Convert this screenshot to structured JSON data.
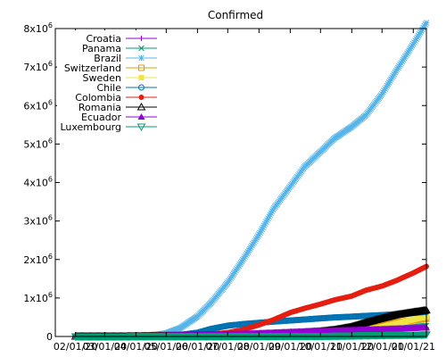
{
  "chart_data": {
    "type": "line",
    "title": "Confirmed",
    "xlabel": "",
    "ylabel": "",
    "x_ticks": [
      "02/01/20",
      "03/01/20",
      "04/01/20",
      "05/01/20",
      "06/01/20",
      "07/01/20",
      "08/01/20",
      "09/01/20",
      "10/01/20",
      "11/01/20",
      "12/01/20",
      "01/01/21"
    ],
    "y_ticks": [
      {
        "value": 0,
        "base": "0",
        "exp": ""
      },
      {
        "value": 1000000,
        "base": "1x10",
        "exp": "6"
      },
      {
        "value": 2000000,
        "base": "2x10",
        "exp": "6"
      },
      {
        "value": 3000000,
        "base": "3x10",
        "exp": "6"
      },
      {
        "value": 4000000,
        "base": "4x10",
        "exp": "6"
      },
      {
        "value": 5000000,
        "base": "5x10",
        "exp": "6"
      },
      {
        "value": 6000000,
        "base": "6x10",
        "exp": "6"
      },
      {
        "value": 7000000,
        "base": "7x10",
        "exp": "6"
      },
      {
        "value": 8000000,
        "base": "8x10",
        "exp": "6"
      }
    ],
    "xlim": [
      "2020-01-12",
      "2021-01-14"
    ],
    "ylim": [
      0,
      8000000
    ],
    "grid": false,
    "legend_position": "top-left",
    "dates": [
      "2020-02-01",
      "2020-03-01",
      "2020-03-15",
      "2020-04-01",
      "2020-04-15",
      "2020-05-01",
      "2020-05-15",
      "2020-06-01",
      "2020-06-15",
      "2020-07-01",
      "2020-07-15",
      "2020-08-01",
      "2020-08-15",
      "2020-09-01",
      "2020-09-15",
      "2020-10-01",
      "2020-10-15",
      "2020-11-01",
      "2020-11-15",
      "2020-12-01",
      "2020-12-15",
      "2021-01-01",
      "2021-01-14"
    ],
    "series": [
      {
        "name": "Croatia",
        "color": "#9400d3",
        "marker": "plus",
        "values": [
          0,
          0,
          0,
          1000,
          2000,
          2100,
          2200,
          2300,
          2500,
          3000,
          4000,
          5000,
          6500,
          10000,
          14000,
          17000,
          21000,
          50000,
          80000,
          130000,
          190000,
          210000,
          223000
        ]
      },
      {
        "name": "Panama",
        "color": "#009e73",
        "marker": "cross",
        "values": [
          0,
          0,
          100,
          1000,
          3000,
          6000,
          9000,
          14000,
          21000,
          33000,
          50000,
          65000,
          80000,
          95000,
          103000,
          115000,
          127000,
          140000,
          155000,
          170000,
          195000,
          245000,
          280000
        ]
      },
      {
        "name": "Brazil",
        "color": "#56b4e9",
        "marker": "asterisk",
        "values": [
          0,
          1,
          200,
          6000,
          28000,
          85000,
          220000,
          520000,
          890000,
          1400000,
          1950000,
          2650000,
          3300000,
          3900000,
          4400000,
          4800000,
          5150000,
          5450000,
          5750000,
          6300000,
          6900000,
          7600000,
          8150000
        ]
      },
      {
        "name": "Switzerland",
        "color": "#e69f00",
        "marker": "square",
        "values": [
          0,
          30,
          2200,
          17000,
          26000,
          29500,
          30500,
          30900,
          31300,
          32000,
          33500,
          35000,
          38000,
          42000,
          46000,
          53000,
          70000,
          160000,
          260000,
          320000,
          370000,
          420000,
          460000
        ]
      },
      {
        "name": "Sweden",
        "color": "#f0e442",
        "marker": "filled-square",
        "values": [
          0,
          10,
          1000,
          5000,
          12000,
          21000,
          30000,
          38000,
          52000,
          68000,
          75000,
          80000,
          83000,
          85000,
          88000,
          93000,
          105000,
          125000,
          180000,
          245000,
          330000,
          440000,
          520000
        ]
      },
      {
        "name": "Chile",
        "color": "#0072b2",
        "marker": "circle",
        "values": [
          0,
          0,
          60,
          3000,
          8000,
          16000,
          40000,
          100000,
          200000,
          280000,
          320000,
          355000,
          385000,
          415000,
          440000,
          470000,
          495000,
          515000,
          535000,
          555000,
          580000,
          610000,
          640000
        ]
      },
      {
        "name": "Colombia",
        "color": "#e51e10",
        "marker": "filled-circle",
        "values": [
          0,
          0,
          50,
          1000,
          3000,
          7000,
          15000,
          30000,
          60000,
          100000,
          170000,
          300000,
          430000,
          620000,
          730000,
          840000,
          950000,
          1050000,
          1200000,
          1310000,
          1450000,
          1650000,
          1820000
        ]
      },
      {
        "name": "Romania",
        "color": "#000000",
        "marker": "triangle",
        "values": [
          0,
          3,
          150,
          2500,
          7000,
          12500,
          16500,
          19500,
          23000,
          27500,
          35000,
          52000,
          70000,
          90000,
          106000,
          130000,
          170000,
          250000,
          360000,
          470000,
          560000,
          630000,
          680000
        ]
      },
      {
        "name": "Ecuador",
        "color": "#9400d3",
        "marker": "filled-triangle",
        "values": [
          0,
          6,
          50,
          3000,
          8000,
          25000,
          32000,
          40000,
          47000,
          58000,
          70000,
          85000,
          98000,
          115000,
          125000,
          140000,
          152000,
          165000,
          180000,
          190000,
          205000,
          215000,
          225000
        ]
      },
      {
        "name": "Luxembourg",
        "color": "#009e73",
        "marker": "triangle-down",
        "values": [
          0,
          0,
          80,
          2300,
          3300,
          3800,
          3900,
          4000,
          4100,
          4500,
          5500,
          6800,
          7300,
          7700,
          8000,
          9000,
          14000,
          22000,
          29000,
          35000,
          40000,
          45000,
          49000
        ]
      }
    ]
  }
}
